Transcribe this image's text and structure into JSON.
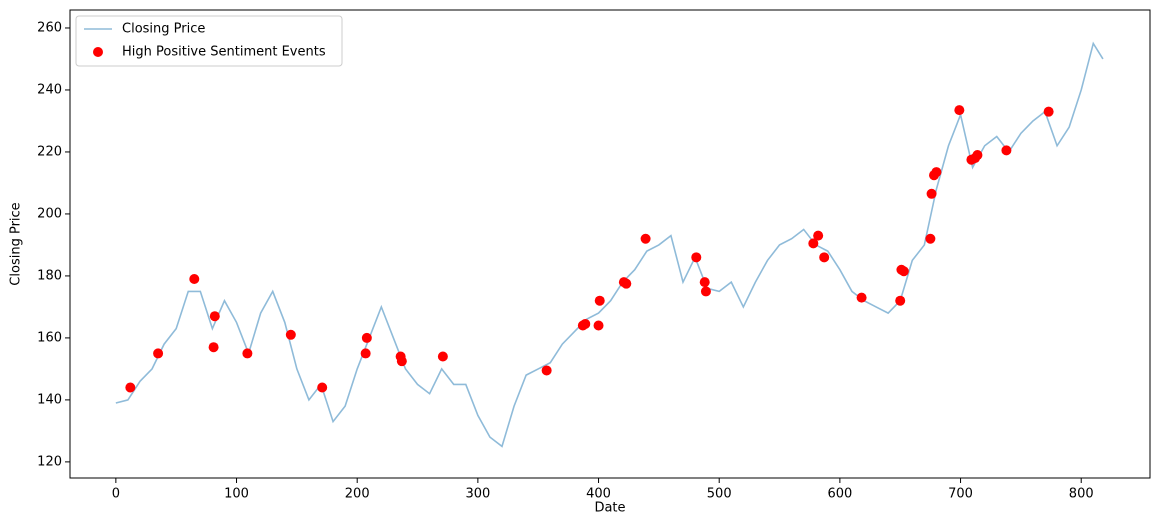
{
  "chart_data": {
    "type": "line",
    "xlabel": "Date",
    "ylabel": "Closing Price",
    "xlim": [
      -38,
      857
    ],
    "ylim": [
      114.8,
      265.8
    ],
    "xticks": [
      0,
      100,
      200,
      300,
      400,
      500,
      600,
      700,
      800
    ],
    "yticks": [
      120,
      140,
      160,
      180,
      200,
      220,
      240,
      260
    ],
    "legend": "upper left",
    "series": [
      {
        "name": "Closing Price",
        "type": "line",
        "color": "#1f77b4",
        "opacity": 0.5,
        "x": [
          0,
          10,
          20,
          30,
          40,
          50,
          60,
          70,
          80,
          90,
          100,
          110,
          120,
          130,
          140,
          150,
          160,
          170,
          180,
          190,
          200,
          210,
          220,
          230,
          240,
          250,
          260,
          270,
          280,
          290,
          300,
          310,
          320,
          330,
          340,
          350,
          360,
          370,
          380,
          390,
          400,
          410,
          420,
          430,
          440,
          450,
          460,
          470,
          480,
          490,
          500,
          510,
          520,
          530,
          540,
          550,
          560,
          570,
          580,
          590,
          600,
          610,
          620,
          630,
          640,
          650,
          660,
          670,
          680,
          690,
          700,
          710,
          720,
          730,
          740,
          750,
          760,
          770,
          780,
          790,
          800,
          810,
          818
        ],
        "values": [
          139,
          140,
          146,
          150,
          158,
          163,
          175,
          175,
          163,
          172,
          165,
          155,
          168,
          175,
          165,
          150,
          140,
          145,
          133,
          138,
          150,
          160,
          170,
          160,
          150,
          145,
          142,
          150,
          145,
          145,
          135,
          128,
          125,
          138,
          148,
          150,
          152,
          158,
          162,
          166,
          168,
          172,
          178,
          182,
          188,
          190,
          193,
          178,
          186,
          176,
          175,
          178,
          170,
          178,
          185,
          190,
          192,
          195,
          190,
          188,
          182,
          175,
          172,
          170,
          168,
          172,
          185,
          190,
          208,
          222,
          232,
          215,
          222,
          225,
          220,
          226,
          230,
          233,
          222,
          228,
          240,
          255,
          250
        ]
      },
      {
        "name": "High Positive Sentiment Events",
        "type": "scatter",
        "color": "#ff0000",
        "x": [
          12,
          35,
          65,
          81,
          82,
          109,
          145,
          171,
          207,
          208,
          236,
          237,
          271,
          357,
          387,
          389,
          400,
          401,
          421,
          423,
          439,
          481,
          488,
          489,
          578,
          582,
          587,
          618,
          650,
          651,
          653,
          675,
          676,
          678,
          680,
          699,
          709,
          712,
          714,
          738,
          773
        ],
        "values": [
          144,
          155,
          179,
          157,
          167,
          155,
          161,
          144,
          155,
          160,
          154,
          152.5,
          154,
          149.5,
          164,
          164.5,
          164,
          172,
          178,
          177.5,
          192,
          186,
          178,
          175,
          190.5,
          193,
          186,
          173,
          172,
          182,
          181.5,
          192,
          206.5,
          212.5,
          213.5,
          233.5,
          217.5,
          218,
          219,
          220.5,
          233
        ]
      }
    ]
  }
}
